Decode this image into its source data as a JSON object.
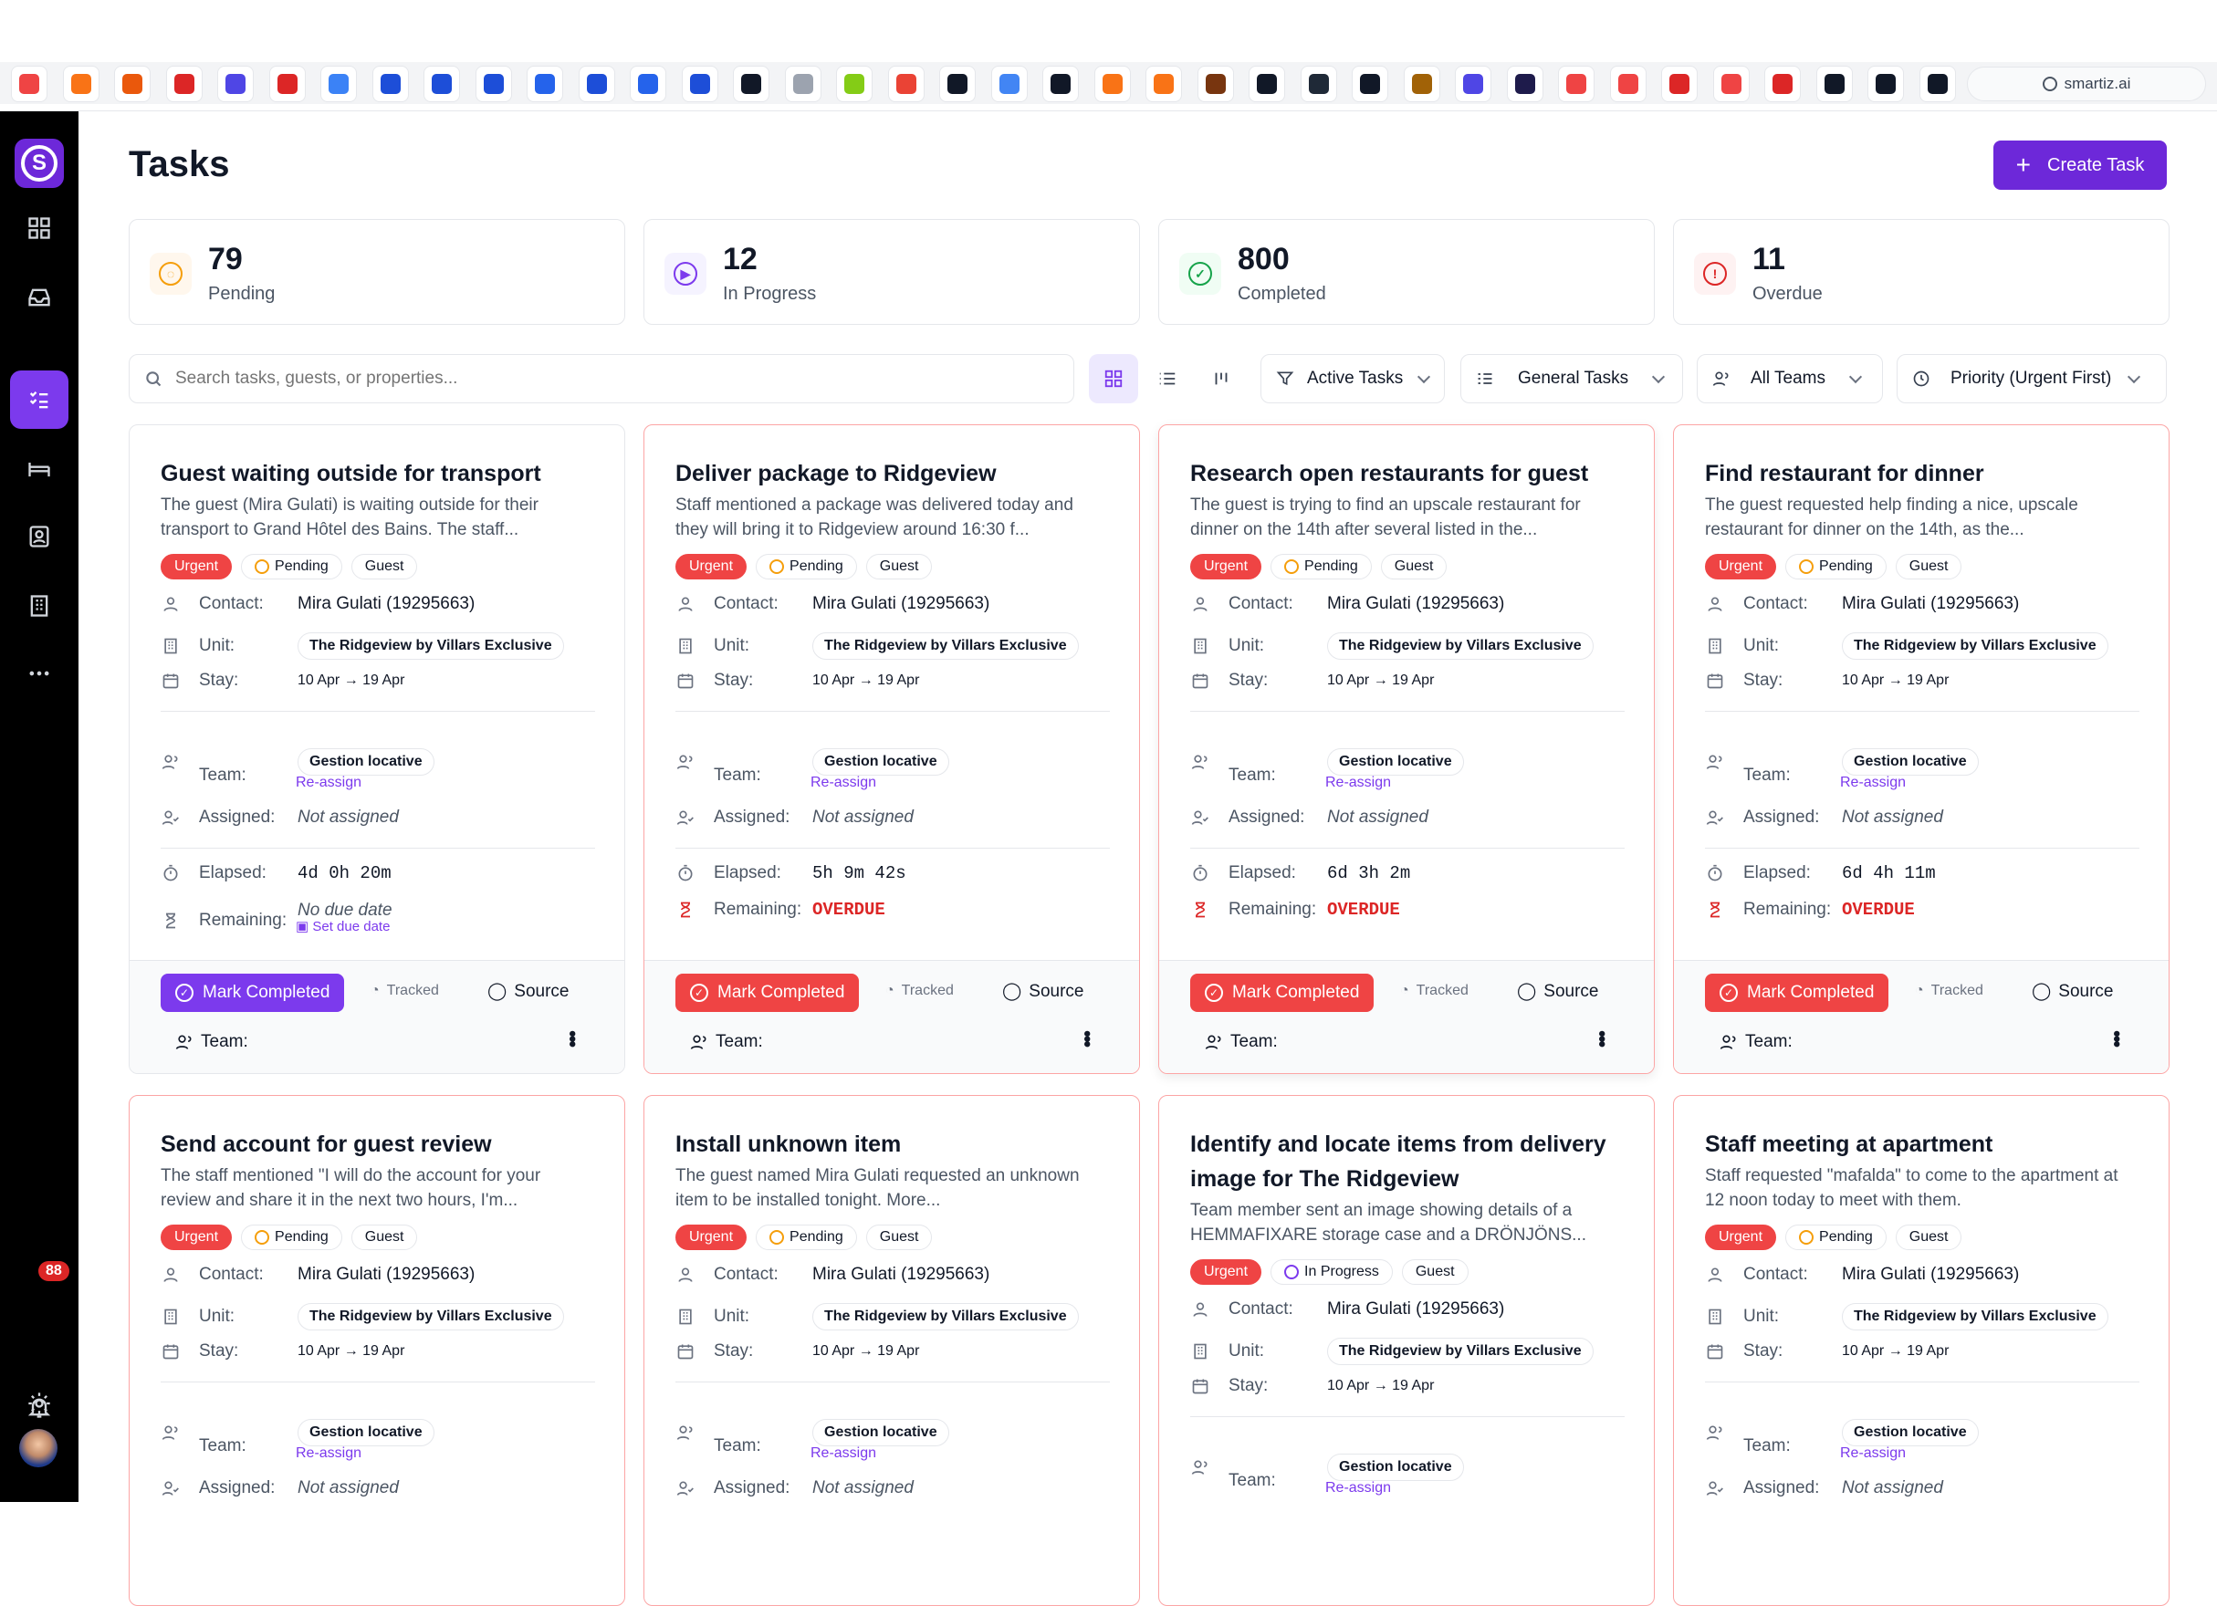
{
  "browser": {
    "url": "smartiz.ai",
    "bookmarks": [
      "youtube-red",
      "asana",
      "webflow",
      "maps",
      "smartiz",
      "netflix",
      "linear",
      "meta",
      "meta",
      "meta",
      "facebook",
      "meta",
      "facebook",
      "meta",
      "openai",
      "star",
      "gpt",
      "google",
      "notion",
      "google",
      "raycast",
      "arc",
      "arc",
      "burger",
      "linear",
      "anthropic",
      "github",
      "anthropic",
      "smartiz",
      "smartiz",
      "link",
      "link",
      "link",
      "link",
      "link",
      "mail",
      "mail",
      "x-app"
    ]
  },
  "sidebar": {
    "notification_count": "88"
  },
  "page": {
    "title": "Tasks",
    "create_label": "Create Task"
  },
  "stats": [
    {
      "value": "79",
      "label": "Pending",
      "color": "#f59e0b",
      "bg": "#fff7ed"
    },
    {
      "value": "12",
      "label": "In Progress",
      "color": "#7c3aed",
      "bg": "#f5f3ff"
    },
    {
      "value": "800",
      "label": "Completed",
      "color": "#16a34a",
      "bg": "#f0fdf4"
    },
    {
      "value": "11",
      "label": "Overdue",
      "color": "#dc2626",
      "bg": "#fef2f2"
    }
  ],
  "toolbar": {
    "search_placeholder": "Search tasks, guests, or properties...",
    "filter_status": "Active Tasks",
    "filter_type": "General Tasks",
    "filter_team": "All Teams",
    "sort": "Priority (Urgent First)"
  },
  "labels": {
    "contact": "Contact:",
    "unit": "Unit:",
    "stay": "Stay:",
    "team": "Team:",
    "assigned": "Assigned:",
    "elapsed": "Elapsed:",
    "remaining": "Remaining:",
    "reassign": "Re-assign",
    "mark_completed": "Mark Completed",
    "tracked": "Tracked",
    "source": "Source",
    "footer_team": "Team:",
    "set_due": "Set due date"
  },
  "tasks": [
    {
      "title": "Guest waiting outside for transport",
      "description": "The guest (Mira Gulati) is waiting outside for their transport to Grand Hôtel des Bains. The staff...",
      "priority": "Urgent",
      "status": "Pending",
      "type": "Guest",
      "contact": "Mira Gulati (19295663)",
      "unit": "The Ridgeview by Villars Exclusive",
      "stay": "10 Apr → 19 Apr",
      "team": "Gestion locative",
      "assigned": "Not assigned",
      "elapsed": "4d 0h 20m",
      "remaining": "No due date"
    },
    {
      "title": "Deliver package to Ridgeview",
      "description": "Staff mentioned a package was delivered today and they will bring it to Ridgeview around 16:30 f...",
      "priority": "Urgent",
      "status": "Pending",
      "type": "Guest",
      "contact": "Mira Gulati (19295663)",
      "unit": "The Ridgeview by Villars Exclusive",
      "stay": "10 Apr → 19 Apr",
      "team": "Gestion locative",
      "assigned": "Not assigned",
      "elapsed": "5h 9m 42s",
      "remaining": "OVERDUE"
    },
    {
      "title": "Research open restaurants for guest",
      "description": "The guest is trying to find an upscale restaurant for dinner on the 14th after several listed in the...",
      "priority": "Urgent",
      "status": "Pending",
      "type": "Guest",
      "contact": "Mira Gulati (19295663)",
      "unit": "The Ridgeview by Villars Exclusive",
      "stay": "10 Apr → 19 Apr",
      "team": "Gestion locative",
      "assigned": "Not assigned",
      "elapsed": "6d 3h 2m",
      "remaining": "OVERDUE"
    },
    {
      "title": "Find restaurant for dinner",
      "description": "The guest requested help finding a nice, upscale restaurant for dinner on the 14th, as the...",
      "priority": "Urgent",
      "status": "Pending",
      "type": "Guest",
      "contact": "Mira Gulati (19295663)",
      "unit": "The Ridgeview by Villars Exclusive",
      "stay": "10 Apr → 19 Apr",
      "team": "Gestion locative",
      "assigned": "Not assigned",
      "elapsed": "6d 4h 11m",
      "remaining": "OVERDUE"
    },
    {
      "title": "Send account for guest review",
      "description": "The staff mentioned \"I will do the account for your review and share it in the next two hours, I'm...",
      "priority": "Urgent",
      "status": "Pending",
      "type": "Guest",
      "contact": "Mira Gulati (19295663)",
      "unit": "The Ridgeview by Villars Exclusive",
      "stay": "10 Apr → 19 Apr",
      "team": "Gestion locative",
      "assigned": "Not assigned"
    },
    {
      "title": "Install unknown item",
      "description": "The guest named Mira Gulati requested an unknown item to be installed tonight. More...",
      "priority": "Urgent",
      "status": "Pending",
      "type": "Guest",
      "contact": "Mira Gulati (19295663)",
      "unit": "The Ridgeview by Villars Exclusive",
      "stay": "10 Apr → 19 Apr",
      "team": "Gestion locative",
      "assigned": "Not assigned"
    },
    {
      "title": "Identify and locate items from delivery image for The Ridgeview",
      "description": "Team member sent an image showing details of a HEMMAFIXARE storage case and a DRÖNJÖNS...",
      "priority": "Urgent",
      "status": "In Progress",
      "type": "Guest",
      "contact": "Mira Gulati (19295663)",
      "unit": "The Ridgeview by Villars Exclusive",
      "stay": "10 Apr → 19 Apr",
      "team": "Gestion locative"
    },
    {
      "title": "Staff meeting at apartment",
      "description": "Staff requested \"mafalda\" to come to the apartment at 12 noon today to meet with them.",
      "priority": "Urgent",
      "status": "Pending",
      "type": "Guest",
      "contact": "Mira Gulati (19295663)",
      "unit": "The Ridgeview by Villars Exclusive",
      "stay": "10 Apr → 19 Apr",
      "team": "Gestion locative",
      "assigned": "Not assigned"
    }
  ]
}
